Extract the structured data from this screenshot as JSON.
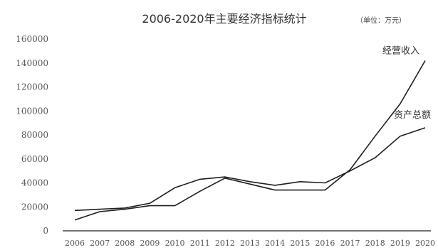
{
  "chart_data": {
    "type": "line",
    "title": "2006-2020年主要经济指标统计",
    "unit_note": "（单位：万元）",
    "xlabel": "",
    "ylabel": "",
    "x": [
      "2006",
      "2007",
      "2008",
      "2009",
      "2010",
      "2011",
      "2012",
      "2013",
      "2014",
      "2015",
      "2016",
      "2017",
      "2018",
      "2019",
      "2020"
    ],
    "ylim": [
      0,
      160000
    ],
    "yticks": [
      0,
      20000,
      40000,
      60000,
      80000,
      100000,
      120000,
      140000,
      160000
    ],
    "ytick_labels": [
      "0",
      "20000",
      "40000",
      "60000",
      "80000",
      "100000",
      "120000",
      "140000",
      "160000"
    ],
    "grid": false,
    "legend": "none",
    "series": [
      {
        "name": "经营收入",
        "values": [
          9000,
          16000,
          18000,
          21000,
          21000,
          33000,
          44000,
          39000,
          34000,
          34000,
          34000,
          51000,
          79000,
          106000,
          142000
        ]
      },
      {
        "name": "资产总额",
        "values": [
          17000,
          18000,
          19000,
          23000,
          36000,
          43000,
          45000,
          41000,
          38000,
          41000,
          40000,
          50000,
          61000,
          79000,
          86000
        ]
      }
    ]
  },
  "colors": {
    "line": "#1e1e1e",
    "text": "#333333"
  }
}
